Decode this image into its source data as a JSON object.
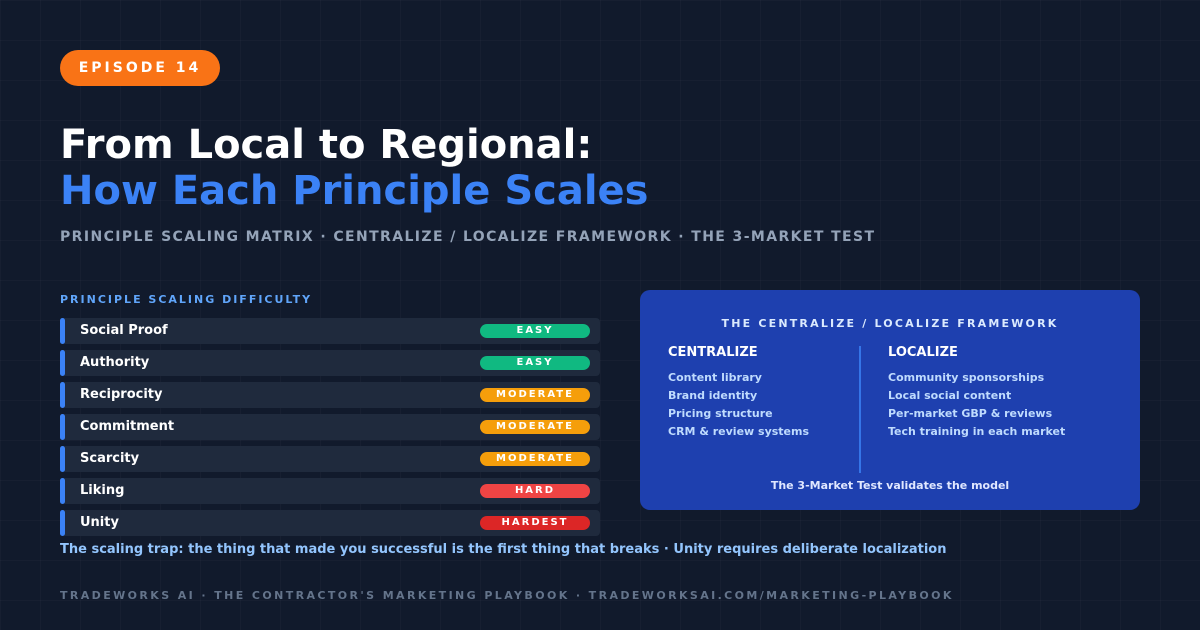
{
  "episode_badge": "EPISODE 14",
  "title": {
    "line1": "From Local to Regional:",
    "line2": "How Each Principle Scales"
  },
  "subtitle": "PRINCIPLE SCALING MATRIX · CENTRALIZE / LOCALIZE FRAMEWORK · THE 3-MARKET TEST",
  "difficulty": {
    "label": "PRINCIPLE SCALING DIFFICULTY",
    "rows": [
      {
        "name": "Social Proof",
        "level": "EASY",
        "color": "#10b981"
      },
      {
        "name": "Authority",
        "level": "EASY",
        "color": "#10b981"
      },
      {
        "name": "Reciprocity",
        "level": "MODERATE",
        "color": "#f59e0b"
      },
      {
        "name": "Commitment",
        "level": "MODERATE",
        "color": "#f59e0b"
      },
      {
        "name": "Scarcity",
        "level": "MODERATE",
        "color": "#f59e0b"
      },
      {
        "name": "Liking",
        "level": "HARD",
        "color": "#ef4444"
      },
      {
        "name": "Unity",
        "level": "HARDEST",
        "color": "#dc2626"
      }
    ]
  },
  "framework": {
    "title": "THE CENTRALIZE / LOCALIZE FRAMEWORK",
    "centralize": {
      "heading": "CENTRALIZE",
      "items": [
        "Content library",
        "Brand identity",
        "Pricing structure",
        "CRM & review systems"
      ]
    },
    "localize": {
      "heading": "LOCALIZE",
      "items": [
        "Community sponsorships",
        "Local social content",
        "Per-market GBP & reviews",
        "Tech training in each market"
      ]
    },
    "footer": "The 3-Market Test validates the model"
  },
  "trap_note": "The scaling trap: the thing that made you successful is the first thing that breaks · Unity requires deliberate localization",
  "footer": "TRADEWORKS AI · THE CONTRACTOR'S MARKETING PLAYBOOK · TRADEWORKSAI.COM/MARKETING-PLAYBOOK",
  "colors": {
    "background": "#111a2c",
    "accent_blue": "#3b82f6",
    "badge_orange": "#f97316",
    "panel_blue": "#1e40af"
  }
}
